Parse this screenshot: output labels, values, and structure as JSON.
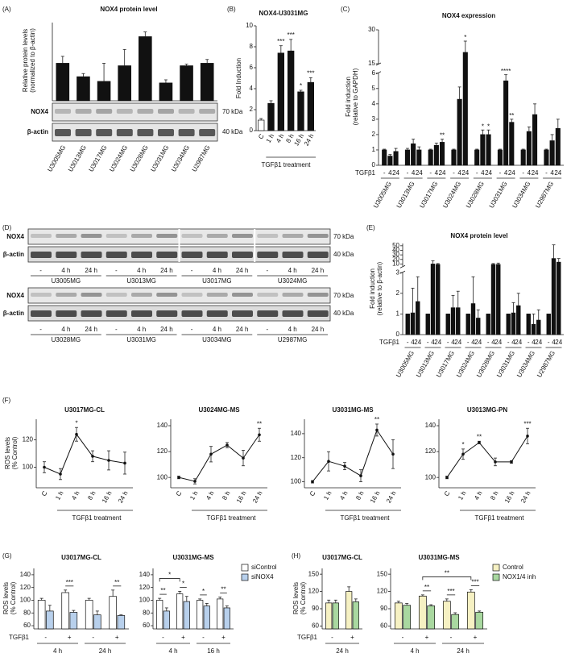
{
  "panel_labels": [
    "(A)",
    "(B)",
    "(C)",
    "(D)",
    "(E)",
    "(F)",
    "(G)",
    "(H)"
  ],
  "blot_a": {
    "rows": [
      "NOX4",
      "β-actin"
    ],
    "sizes": [
      "70 kDa",
      "40 kDa"
    ]
  },
  "blot_d": {
    "rows": [
      "NOX4",
      "β-actin"
    ],
    "sizes": [
      "70 kDa",
      "40 kDa"
    ],
    "lanes": [
      "-",
      "4 h",
      "24 h"
    ],
    "cell_lines": [
      [
        "U3005MG",
        "U3013MG",
        "U3017MG",
        "U3024MG"
      ],
      [
        "U3028MG",
        "U3031MG",
        "U3034MG",
        "U2987MG"
      ]
    ]
  },
  "chart_data": [
    {
      "type": "bar",
      "title": "NOX4 protein level",
      "ylabel": [
        "Relative protein levels",
        "(normalized to β-actin)"
      ],
      "categories": [
        "U3005MG",
        "U3013MG",
        "U3017MG",
        "U3024MG",
        "U3028MG",
        "U3031MG",
        "U3034MG",
        "U2987MG"
      ],
      "values": [
        0.12,
        0.077,
        0.062,
        0.112,
        0.205,
        0.057,
        0.112,
        0.12
      ],
      "errors": [
        0.022,
        0.01,
        0.058,
        0.052,
        0.015,
        0.01,
        0.005,
        0.012
      ],
      "ylim": [
        0,
        0.25
      ],
      "colors": [
        "#111111",
        "#111111",
        "#111111",
        "#111111",
        "#111111",
        "#111111",
        "#111111",
        "#111111"
      ]
    },
    {
      "type": "bar",
      "title": "NOX4-U3031MG",
      "ylabel": "Fold Induction",
      "xlabel": "TGFβ1 treatment",
      "categories": [
        "C",
        "1 h",
        "4 h",
        "8 h",
        "16 h",
        "24 h"
      ],
      "values": [
        1,
        2.6,
        7.4,
        7.6,
        3.7,
        4.6
      ],
      "errors": [
        0.15,
        0.25,
        0.7,
        1.1,
        0.15,
        0.45
      ],
      "annotations": [
        null,
        null,
        "***",
        "***",
        "*",
        "***"
      ],
      "ylim": [
        0,
        10
      ],
      "yticks": [
        0,
        2,
        4,
        6,
        8,
        10
      ],
      "colors": [
        "#ffffff",
        "#111111",
        "#111111",
        "#111111",
        "#111111",
        "#111111"
      ]
    },
    {
      "type": "bar",
      "title": "NOX4 expression",
      "ylabel": [
        "Fold induction",
        "(relative to GAPDH)"
      ],
      "treatment_label": "TGFβ1",
      "conditions": [
        "-",
        "4",
        "24"
      ],
      "groups": [
        "U3005MG",
        "U3013MG",
        "U3017MG",
        "U3024MG",
        "U3028MG",
        "U3031MG",
        "U3034MG",
        "U2987MG"
      ],
      "values": [
        [
          1,
          0.6,
          0.9
        ],
        [
          1,
          1.4,
          1.0
        ],
        [
          1,
          1.3,
          1.5
        ],
        [
          1,
          4.3,
          20
        ],
        [
          1,
          2.0,
          2.0
        ],
        [
          1,
          5.5,
          2.8
        ],
        [
          1,
          2.2,
          3.3
        ],
        [
          1,
          1.6,
          2.4
        ]
      ],
      "errors": [
        [
          0.05,
          0.1,
          0.2
        ],
        [
          0.1,
          0.3,
          0.2
        ],
        [
          0.05,
          0.15,
          0.2
        ],
        [
          0.05,
          0.8,
          5
        ],
        [
          0.05,
          0.3,
          0.3
        ],
        [
          0.05,
          0.4,
          0.2
        ],
        [
          0.05,
          0.3,
          0.7
        ],
        [
          0.05,
          0.4,
          0.6
        ]
      ],
      "annotations": [
        [
          null,
          null,
          null
        ],
        [
          null,
          null,
          null
        ],
        [
          null,
          null,
          "**"
        ],
        [
          null,
          null,
          "*"
        ],
        [
          null,
          "*",
          "*"
        ],
        [
          null,
          "****",
          "**"
        ],
        [
          null,
          null,
          null
        ],
        [
          null,
          null,
          null
        ]
      ],
      "ylim": [
        0,
        30
      ],
      "ybreak": [
        6,
        15
      ],
      "yticks": [
        0,
        1,
        2,
        3,
        4,
        5,
        6,
        15,
        30
      ],
      "color": "#111111"
    },
    {
      "type": "bar",
      "title": "NOX4 protein level",
      "ylabel": [
        "Fold induction",
        "(relative to β-actin)"
      ],
      "treatment_label": "TGFβ1",
      "conditions": [
        "-",
        "4",
        "24"
      ],
      "groups": [
        "U3005MG",
        "U3013MG",
        "U3017MG",
        "U3024MG",
        "U3028MG",
        "U3031MG",
        "U3034MG",
        "U2987MG"
      ],
      "values": [
        [
          1,
          1.05,
          1.6
        ],
        [
          1,
          10,
          9
        ],
        [
          1,
          1.3,
          1.3
        ],
        [
          1,
          1.5,
          0.8
        ],
        [
          1,
          9,
          9
        ],
        [
          1,
          1.05,
          1.4
        ],
        [
          1,
          0.5,
          0.7
        ],
        [
          1,
          22,
          14
        ]
      ],
      "errors": [
        [
          null,
          1.2,
          1.2
        ],
        [
          null,
          7,
          2
        ],
        [
          null,
          0.6,
          0.8
        ],
        [
          null,
          1.3,
          0.4
        ],
        [
          null,
          2,
          3
        ],
        [
          null,
          0.5,
          0.6
        ],
        [
          null,
          0.5,
          0.5
        ],
        [
          null,
          30,
          8
        ]
      ],
      "ylim": [
        0,
        55
      ],
      "ybreak": [
        3,
        5
      ],
      "yticks": [
        0,
        1,
        2,
        3,
        10,
        20,
        30,
        40,
        50
      ],
      "color": "#111111"
    },
    {
      "type": "line",
      "title": "U3017MG-CL",
      "ylabel": [
        "ROS levels",
        "(% Control)"
      ],
      "xlabel": "TGFβ1 treatment",
      "categories": [
        "C",
        "1 h",
        "4 h",
        "8 h",
        "16 h",
        "24 h"
      ],
      "values": [
        100,
        95,
        124,
        108,
        105,
        103
      ],
      "errors": [
        4,
        4,
        5,
        4,
        7,
        8
      ],
      "annotations": [
        null,
        null,
        "*",
        null,
        null,
        null
      ],
      "ylim": [
        85,
        135
      ],
      "yticks": [
        100,
        120
      ],
      "color": "#111111"
    },
    {
      "type": "line",
      "title": "U3024MG-MS",
      "xlabel": "TGFβ1 treatment",
      "categories": [
        "C",
        "1 h",
        "4 h",
        "8 h",
        "16 h",
        "24 h"
      ],
      "values": [
        100,
        97,
        118,
        125,
        115,
        133
      ],
      "errors": [
        1,
        2,
        6,
        2,
        6,
        5
      ],
      "annotations": [
        null,
        null,
        null,
        null,
        null,
        "**"
      ],
      "ylim": [
        92,
        145
      ],
      "yticks": [
        100,
        120,
        140
      ],
      "color": "#111111"
    },
    {
      "type": "line",
      "title": "U3031MG-MS",
      "xlabel": "TGFβ1 treatment",
      "categories": [
        "C",
        "1 h",
        "4 h",
        "8 h",
        "16 h",
        "24 h"
      ],
      "values": [
        100,
        117,
        113,
        105,
        143,
        123
      ],
      "errors": [
        1,
        8,
        3,
        5,
        5,
        12
      ],
      "annotations": [
        null,
        null,
        null,
        null,
        "**",
        null
      ],
      "ylim": [
        95,
        152
      ],
      "yticks": [
        100,
        120,
        140
      ],
      "color": "#111111"
    },
    {
      "type": "line",
      "title": "U3013MG-PN",
      "xlabel": "TGFβ1 treatment",
      "categories": [
        "C",
        "1 h",
        "4 h",
        "8 h",
        "16 h",
        "24 h"
      ],
      "values": [
        100,
        118,
        127,
        112,
        112,
        132
      ],
      "errors": [
        1,
        4,
        1,
        3,
        1,
        6
      ],
      "annotations": [
        null,
        "*",
        "**",
        null,
        null,
        "***"
      ],
      "ylim": [
        92,
        145
      ],
      "yticks": [
        100,
        120,
        140
      ],
      "color": "#111111"
    },
    {
      "type": "bar",
      "title": "U3017MG-CL",
      "ylabel": [
        "ROS levels",
        "(% Control)"
      ],
      "treatment_label": "TGFβ1",
      "categories": [
        "-",
        "+",
        "-",
        "+"
      ],
      "groups": [
        "4 h",
        "24 h"
      ],
      "series": [
        {
          "color": "#ffffff",
          "values": [
            100,
            112,
            100,
            106
          ],
          "errors": [
            3,
            4,
            3,
            10
          ]
        },
        {
          "color": "#b8d0ec",
          "values": [
            83,
            81,
            77,
            76
          ],
          "errors": [
            9,
            3,
            6,
            1
          ]
        }
      ],
      "annotations": [
        null,
        "***",
        null,
        "**"
      ],
      "ylim": [
        55,
        150
      ],
      "yticks": [
        60,
        80,
        100,
        120,
        140
      ]
    },
    {
      "type": "bar",
      "title": "U3031MG-MS",
      "categories": [
        "-",
        "+",
        "-",
        "+"
      ],
      "groups": [
        "4 h",
        "16 h"
      ],
      "series": [
        {
          "name": "siControl",
          "color": "#ffffff",
          "values": [
            100,
            110,
            100,
            102
          ],
          "errors": [
            3,
            4,
            2,
            3
          ]
        },
        {
          "name": "siNOX4",
          "color": "#b8d0ec",
          "values": [
            83,
            98,
            91,
            88
          ],
          "errors": [
            5,
            8,
            4,
            3
          ]
        }
      ],
      "annotations": [
        "**",
        "*",
        "*",
        "**"
      ],
      "bracket_annotations": [
        "*"
      ],
      "ylim": [
        55,
        150
      ],
      "yticks": [
        60,
        80,
        100,
        120,
        140
      ]
    },
    {
      "type": "bar",
      "title": "U3017MG-CL",
      "ylabel": [
        "ROS levels",
        "(% Control)"
      ],
      "treatment_label": "TGFβ1",
      "categories": [
        "-",
        "+"
      ],
      "groups": [
        "24 h"
      ],
      "series": [
        {
          "color": "#f6f1c3",
          "values": [
            100,
            120
          ],
          "errors": [
            5,
            8
          ]
        },
        {
          "color": "#a9d8a0",
          "values": [
            100,
            102
          ],
          "errors": [
            5,
            5
          ]
        }
      ],
      "ylim": [
        55,
        160
      ],
      "yticks": [
        60,
        90,
        120,
        150
      ]
    },
    {
      "type": "bar",
      "title": "U3031MG-MS",
      "categories": [
        "-",
        "+",
        "-",
        "+"
      ],
      "groups": [
        "4 h",
        "24 h"
      ],
      "series": [
        {
          "name": "Control",
          "color": "#f6f1c3",
          "values": [
            100,
            112,
            103,
            119
          ],
          "errors": [
            3,
            2,
            4,
            4
          ]
        },
        {
          "name": "NOX1/4 inh",
          "color": "#a9d8a0",
          "values": [
            96,
            95,
            80,
            84
          ],
          "errors": [
            3,
            2,
            3,
            2
          ]
        }
      ],
      "annotations": [
        null,
        "**",
        "***",
        "***"
      ],
      "bracket_annotations": [
        "**"
      ],
      "ylim": [
        55,
        160
      ],
      "yticks": [
        60,
        90,
        120,
        150
      ]
    }
  ]
}
